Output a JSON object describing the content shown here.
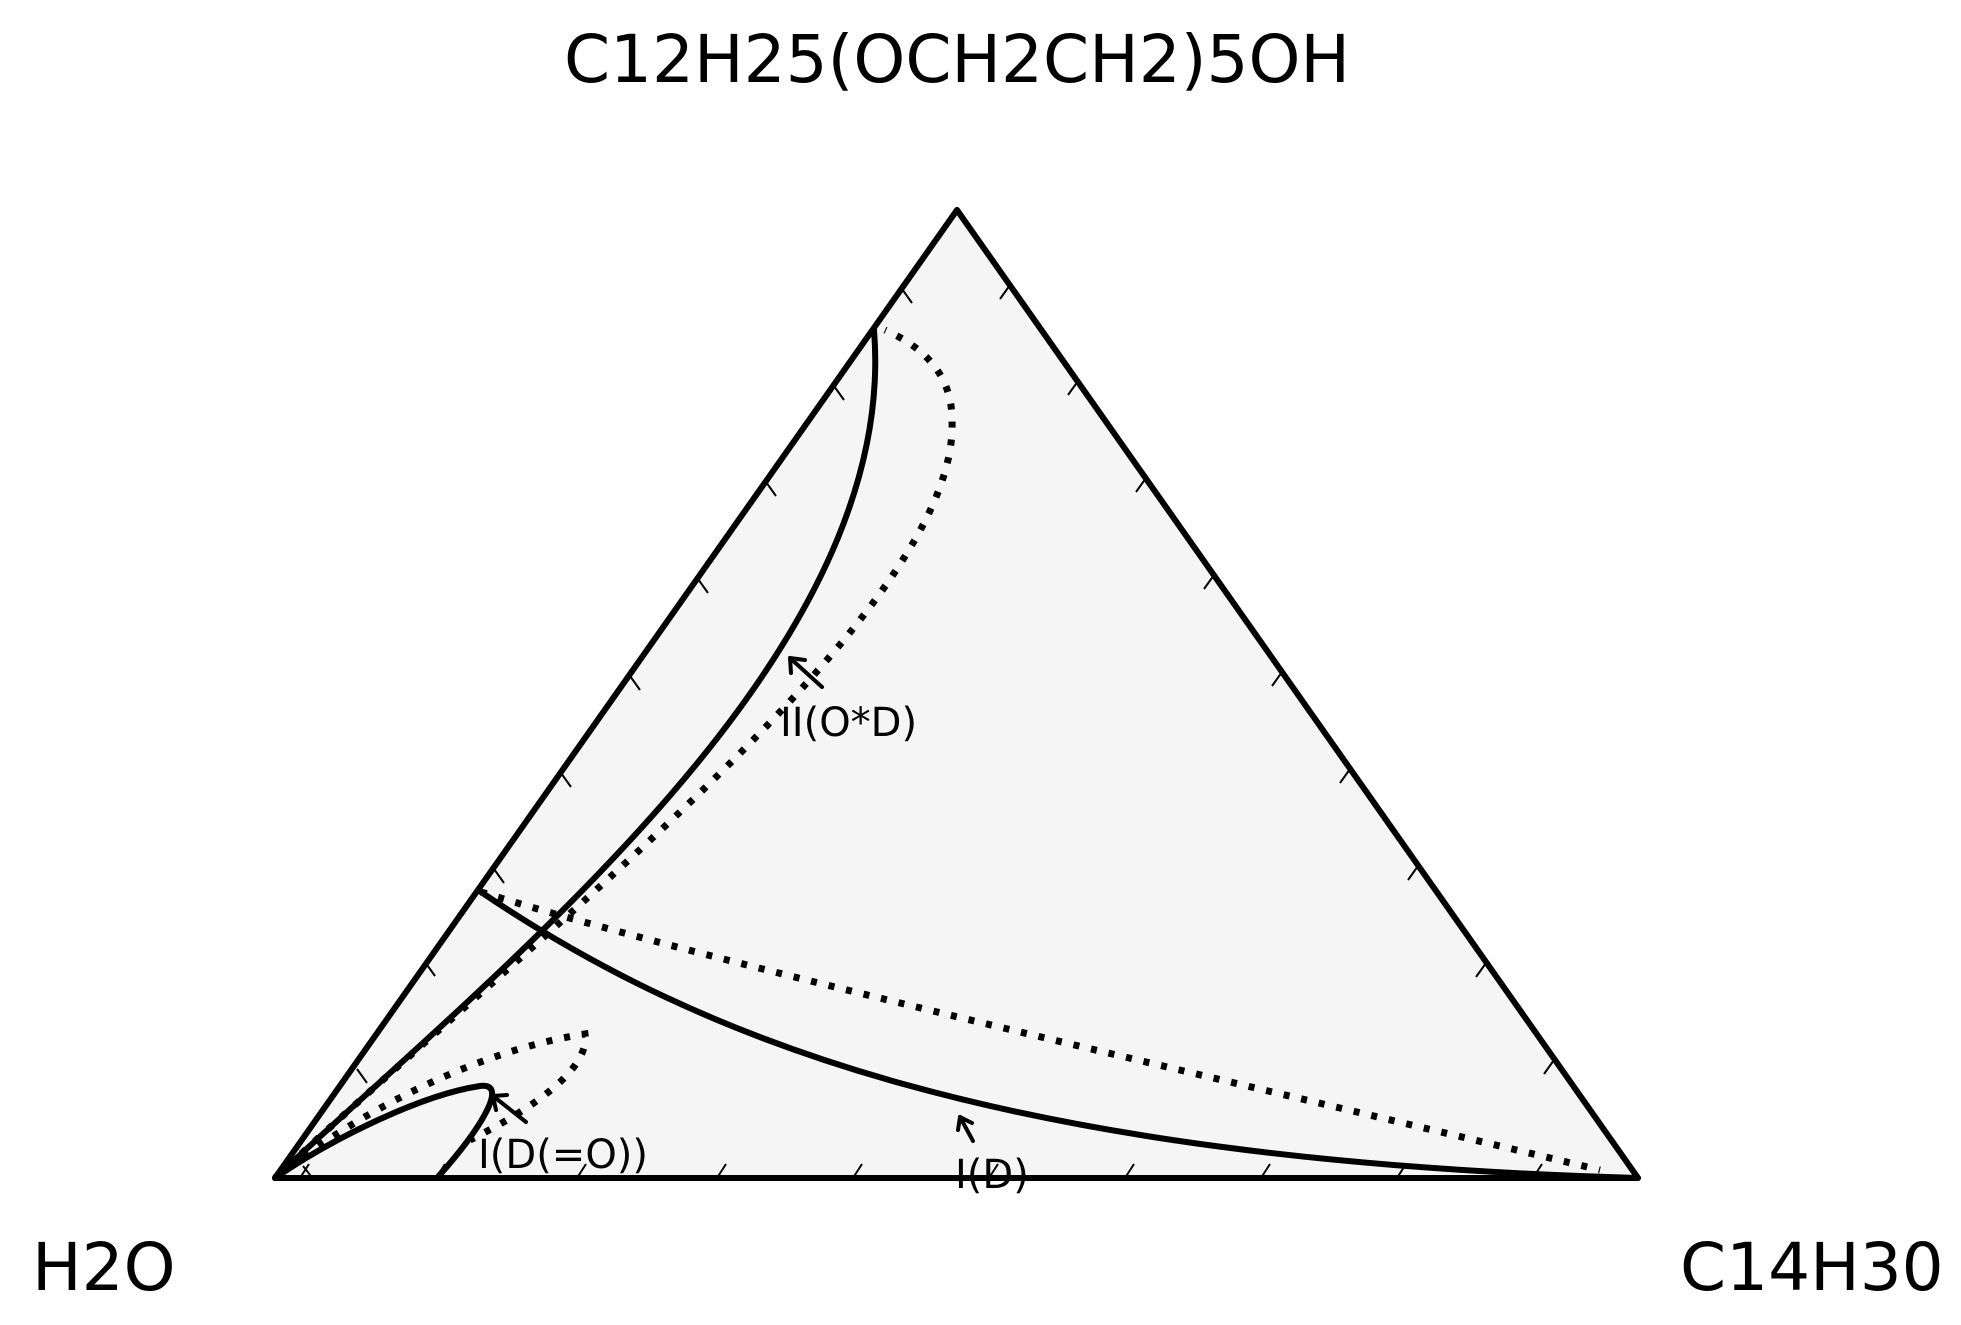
{
  "diagram": {
    "vertices": {
      "top": "C12H25(OCH2CH2)5OH",
      "left": "H2O",
      "right": "C14H30"
    },
    "curve_labels": {
      "two_phase_upper": "II(O*D)",
      "one_phase_droplet": "I(D(=O))",
      "one_phase": "I(D)"
    },
    "colors": {
      "triangle_fill": "#f5f5f5",
      "line": "#000000"
    },
    "line_styles": [
      "solid",
      "dotted"
    ]
  }
}
